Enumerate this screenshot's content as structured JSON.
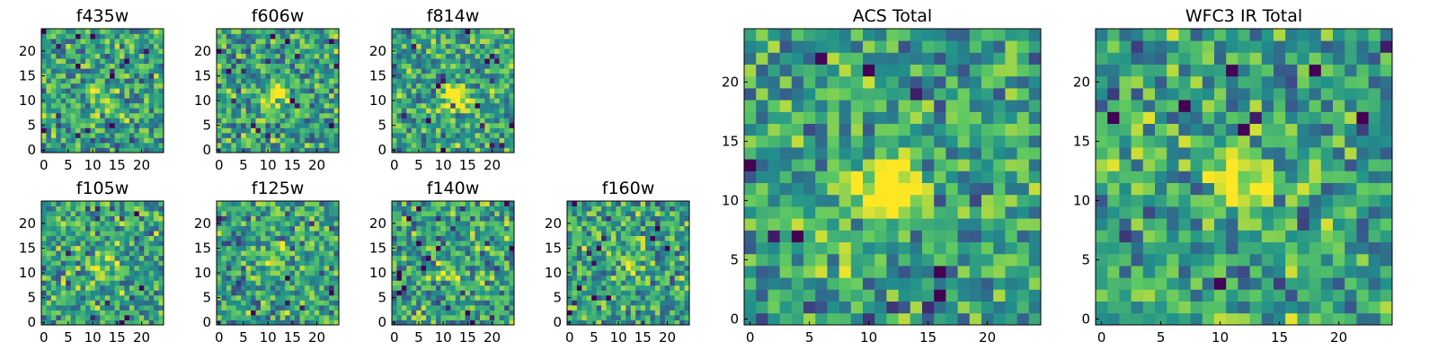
{
  "chart_data": [
    {
      "type": "heatmap",
      "title": "f435w",
      "grid_size": 25,
      "blob": {
        "x": 12,
        "y": 11,
        "amp": 0.25
      },
      "seed": 11,
      "xticks": [
        "0",
        "5",
        "10",
        "15",
        "20"
      ],
      "yticks": [
        "0",
        "5",
        "10",
        "15",
        "20"
      ],
      "xlim": [
        0,
        25
      ],
      "ylim": [
        0,
        25
      ]
    },
    {
      "type": "heatmap",
      "title": "f606w",
      "grid_size": 25,
      "blob": {
        "x": 12.5,
        "y": 11,
        "amp": 0.55
      },
      "seed": 23,
      "xticks": [
        "0",
        "5",
        "10",
        "15",
        "20"
      ],
      "yticks": [
        "0",
        "5",
        "10",
        "15",
        "20"
      ],
      "xlim": [
        0,
        25
      ],
      "ylim": [
        0,
        25
      ]
    },
    {
      "type": "heatmap",
      "title": "f814w",
      "grid_size": 25,
      "blob": {
        "x": 13,
        "y": 11,
        "amp": 0.6
      },
      "seed": 37,
      "xticks": [
        "0",
        "5",
        "10",
        "15",
        "20"
      ],
      "yticks": [
        "0",
        "5",
        "10",
        "15",
        "20"
      ],
      "xlim": [
        0,
        25
      ],
      "ylim": [
        0,
        25
      ]
    },
    {
      "type": "heatmap",
      "title": "f105w",
      "grid_size": 25,
      "blob": {
        "x": 13,
        "y": 12,
        "amp": 0.3
      },
      "seed": 41,
      "xticks": [
        "0",
        "5",
        "10",
        "15",
        "20"
      ],
      "yticks": [
        "0",
        "5",
        "10",
        "15",
        "20"
      ],
      "xlim": [
        0,
        25
      ],
      "ylim": [
        0,
        25
      ]
    },
    {
      "type": "heatmap",
      "title": "f125w",
      "grid_size": 25,
      "blob": {
        "x": 12,
        "y": 13,
        "amp": 0.25
      },
      "seed": 53,
      "xticks": [
        "0",
        "5",
        "10",
        "15",
        "20"
      ],
      "yticks": [
        "0",
        "5",
        "10",
        "15",
        "20"
      ],
      "xlim": [
        0,
        25
      ],
      "ylim": [
        0,
        25
      ]
    },
    {
      "type": "heatmap",
      "title": "f140w",
      "grid_size": 25,
      "blob": {
        "x": 12,
        "y": 11,
        "amp": 0.25
      },
      "seed": 67,
      "xticks": [
        "0",
        "5",
        "10",
        "15",
        "20"
      ],
      "yticks": [
        "0",
        "5",
        "10",
        "15",
        "20"
      ],
      "xlim": [
        0,
        25
      ],
      "ylim": [
        0,
        25
      ]
    },
    {
      "type": "heatmap",
      "title": "f160w",
      "grid_size": 25,
      "blob": {
        "x": 13,
        "y": 12,
        "amp": 0.2
      },
      "seed": 79,
      "xticks": [
        "0",
        "5",
        "10",
        "15",
        "20"
      ],
      "yticks": [
        "0",
        "5",
        "10",
        "15",
        "20"
      ],
      "xlim": [
        0,
        25
      ],
      "ylim": [
        0,
        25
      ]
    },
    {
      "type": "heatmap",
      "title": "ACS Total",
      "grid_size": 25,
      "blob": {
        "x": 12,
        "y": 11,
        "amp": 0.75
      },
      "seed": 91,
      "xticks": [
        "0",
        "5",
        "10",
        "15",
        "20"
      ],
      "yticks": [
        "0",
        "5",
        "10",
        "15",
        "20"
      ],
      "xlim": [
        0,
        25
      ],
      "ylim": [
        0,
        25
      ]
    },
    {
      "type": "heatmap",
      "title": "WFC3 IR Total",
      "grid_size": 25,
      "blob": {
        "x": 12.5,
        "y": 12.5,
        "amp": 0.55
      },
      "seed": 103,
      "xticks": [
        "0",
        "5",
        "10",
        "15",
        "20"
      ],
      "yticks": [
        "0",
        "5",
        "10",
        "15",
        "20"
      ],
      "xlim": [
        0,
        25
      ],
      "ylim": [
        0,
        25
      ]
    }
  ],
  "colormap": [
    "#440154",
    "#3b528b",
    "#21918c",
    "#5ec962",
    "#fde725"
  ]
}
